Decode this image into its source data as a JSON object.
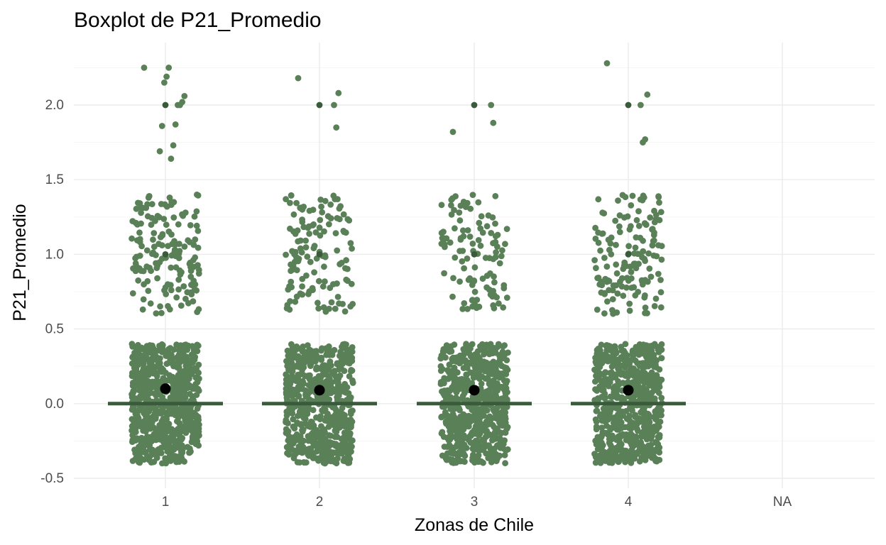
{
  "chart_data": {
    "type": "boxplot",
    "title": "Boxplot de P21_Promedio",
    "xlabel": "Zonas de Chile",
    "ylabel": "P21_Promedio",
    "categories": [
      "1",
      "2",
      "3",
      "4",
      "NA"
    ],
    "ylim": [
      -0.5,
      2.3
    ],
    "y_ticks": [
      "-0.5",
      "0.0",
      "0.5",
      "1.0",
      "1.5",
      "2.0"
    ],
    "y_tick_values": [
      -0.5,
      0.0,
      0.5,
      1.0,
      1.5,
      2.0
    ],
    "grid": true,
    "legend": "none",
    "boxes": [
      {
        "category": "1",
        "q1": 0.0,
        "median": 0.0,
        "q3": 0.0,
        "mean": 0.1
      },
      {
        "category": "2",
        "q1": 0.0,
        "median": 0.0,
        "q3": 0.0,
        "mean": 0.09
      },
      {
        "category": "3",
        "q1": 0.0,
        "median": 0.0,
        "q3": 0.0,
        "mean": 0.09
      },
      {
        "category": "4",
        "q1": 0.0,
        "median": 0.0,
        "q3": 0.0,
        "mean": 0.09
      },
      {
        "category": "NA"
      }
    ],
    "outliers": [
      {
        "category": "1",
        "values": [
          1.0,
          2.0
        ]
      },
      {
        "category": "2",
        "values": [
          1.0,
          2.0
        ]
      },
      {
        "category": "3",
        "values": [
          1.0,
          2.0
        ]
      },
      {
        "category": "4",
        "values": [
          1.0,
          2.0
        ]
      }
    ],
    "jitter": [
      {
        "category": "1",
        "bands": [
          [
            -0.4,
            0.4,
            700
          ],
          [
            0.6,
            1.4,
            160
          ]
        ],
        "high": [
          2.25,
          2.06,
          2.02,
          2.0,
          2.0,
          1.87,
          1.73,
          1.64,
          2.25,
          2.19,
          2.15,
          1.86,
          1.69
        ]
      },
      {
        "category": "2",
        "bands": [
          [
            -0.4,
            0.4,
            650
          ],
          [
            0.6,
            1.4,
            130
          ]
        ],
        "high": [
          2.18,
          2.08,
          1.85,
          2.0
        ]
      },
      {
        "category": "3",
        "bands": [
          [
            -0.4,
            0.4,
            650
          ],
          [
            0.6,
            1.4,
            110
          ]
        ],
        "high": [
          1.82,
          1.88,
          2.0
        ]
      },
      {
        "category": "4",
        "bands": [
          [
            -0.4,
            0.4,
            680
          ],
          [
            0.6,
            1.4,
            150
          ]
        ],
        "high": [
          2.28,
          2.07,
          1.77,
          1.75,
          2.0
        ]
      }
    ],
    "colors": {
      "points": "#5a8058",
      "box_line": "#3a5a3c",
      "outlier": "#3a5a3c",
      "mean": "#000000",
      "grid_major": "#ebebeb",
      "grid_minor": "#f5f5f5",
      "background": "#ffffff"
    }
  }
}
